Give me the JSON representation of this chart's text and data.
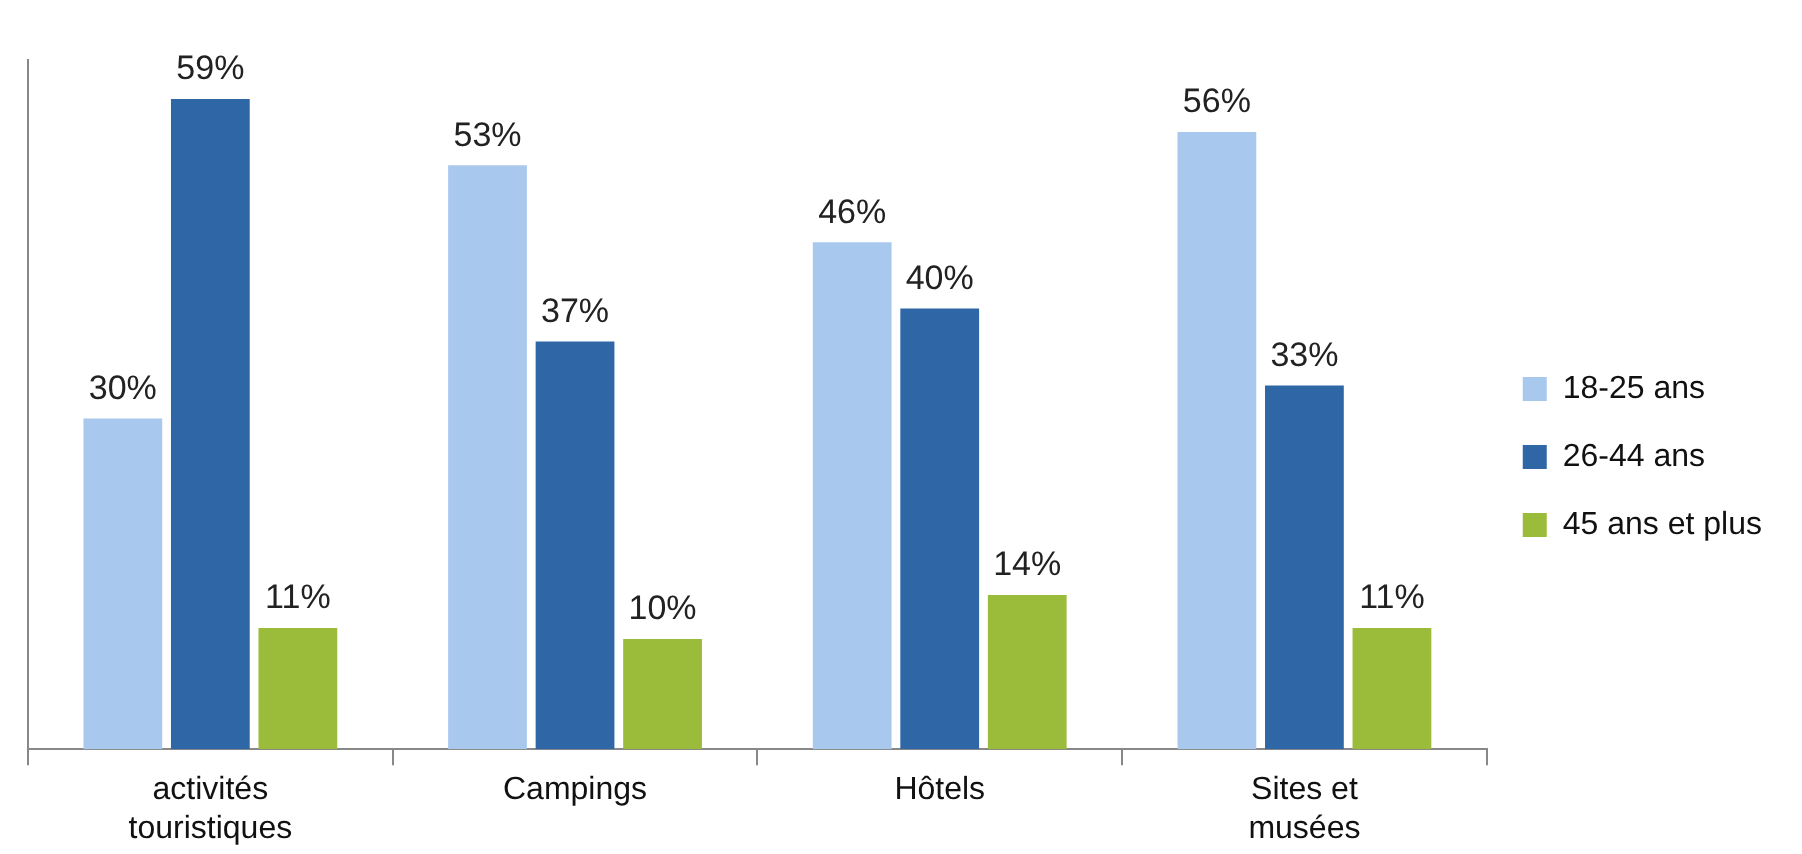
{
  "chart_data": {
    "type": "bar",
    "categories": [
      "activités touristiques",
      "Campings",
      "Hôtels",
      "Sites et musées"
    ],
    "series": [
      {
        "name": "18-25 ans",
        "color": "#a9c8ee",
        "values": [
          30,
          53,
          46,
          56
        ],
        "value_labels": [
          "30%",
          "53%",
          "46%",
          "56%"
        ]
      },
      {
        "name": "26-44 ans",
        "color": "#2f66a6",
        "values": [
          59,
          37,
          40,
          33
        ],
        "value_labels": [
          "59%",
          "37%",
          "40%",
          "33%"
        ]
      },
      {
        "name": "45 ans et plus",
        "color": "#9bbb3b",
        "values": [
          11,
          10,
          14,
          11
        ],
        "value_labels": [
          "11%",
          "10%",
          "14%",
          "11%"
        ]
      }
    ],
    "relative": false,
    "grid": false,
    "legend": "right"
  }
}
